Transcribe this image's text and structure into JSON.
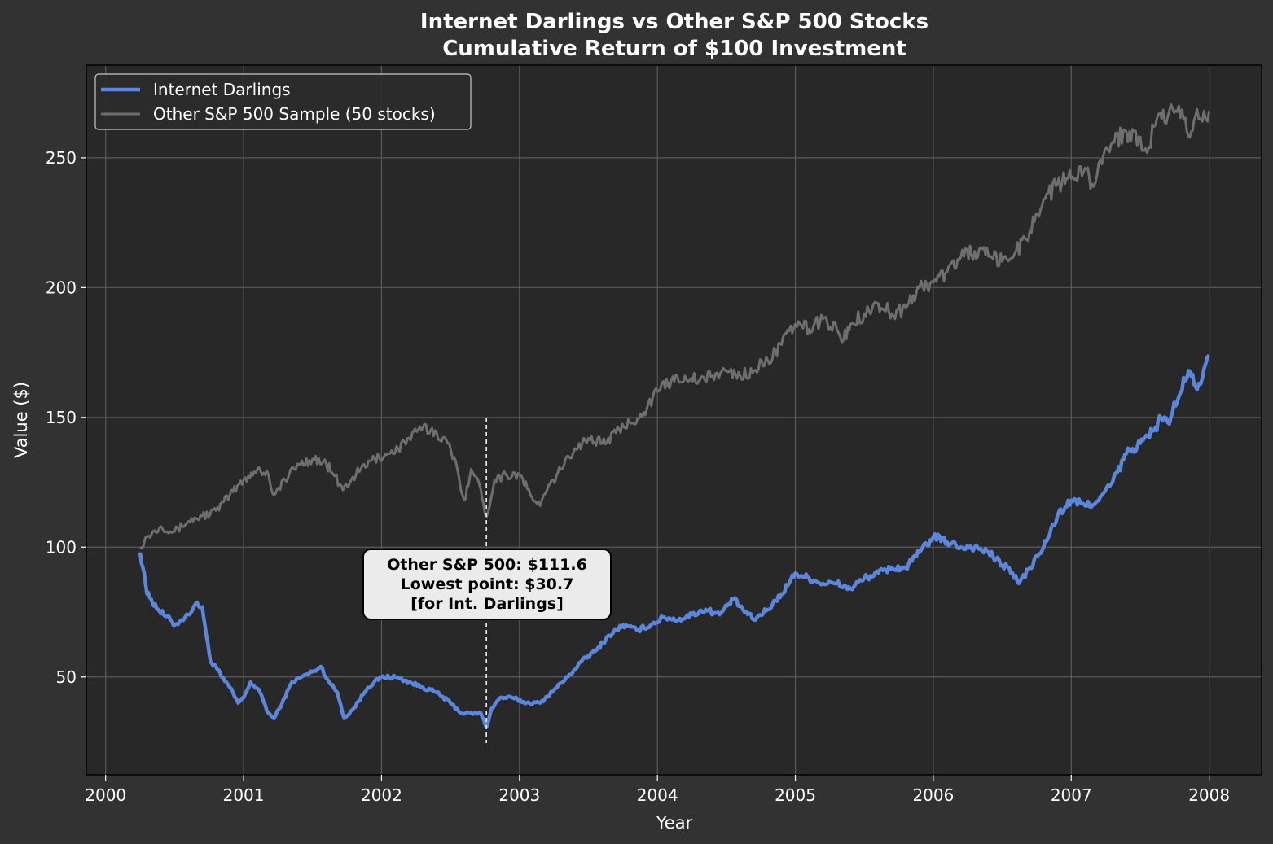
{
  "chart_data": {
    "type": "line",
    "title": "Internet Darlings vs Other S&P 500 Stocks",
    "subtitle": "Cumulative Return of $100 Investment",
    "xlabel": "Year",
    "ylabel": "Value ($)",
    "xlim": [
      1999.86,
      2008.38
    ],
    "ylim": [
      12.3,
      285.7
    ],
    "x_ticks": [
      2000,
      2001,
      2002,
      2003,
      2004,
      2005,
      2006,
      2007,
      2008
    ],
    "y_ticks": [
      50,
      100,
      150,
      200,
      250
    ],
    "grid": true,
    "legend_position": "top-left",
    "background": "#323232",
    "plot_background": "#282828",
    "series": [
      {
        "name": "Internet Darlings",
        "color": "#5b86db",
        "x": [
          2000.25,
          2000.28,
          2000.3,
          2000.33,
          2000.38,
          2000.42,
          2000.47,
          2000.5,
          2000.55,
          2000.6,
          2000.65,
          2000.7,
          2000.73,
          2000.76,
          2000.8,
          2000.84,
          2000.9,
          2000.96,
          2001.0,
          2001.05,
          2001.12,
          2001.18,
          2001.22,
          2001.28,
          2001.35,
          2001.42,
          2001.5,
          2001.56,
          2001.62,
          2001.68,
          2001.73,
          2001.8,
          2001.9,
          2002.0,
          2002.1,
          2002.2,
          2002.3,
          2002.4,
          2002.5,
          2002.58,
          2002.65,
          2002.72,
          2002.76,
          2002.8,
          2002.86,
          2002.95,
          2003.05,
          2003.15,
          2003.25,
          2003.35,
          2003.45,
          2003.55,
          2003.65,
          2003.75,
          2003.85,
          2003.95,
          2004.05,
          2004.15,
          2004.25,
          2004.35,
          2004.45,
          2004.55,
          2004.62,
          2004.7,
          2004.8,
          2004.9,
          2005.0,
          2005.1,
          2005.2,
          2005.3,
          2005.4,
          2005.5,
          2005.6,
          2005.7,
          2005.8,
          2005.9,
          2006.0,
          2006.1,
          2006.2,
          2006.3,
          2006.4,
          2006.5,
          2006.55,
          2006.62,
          2006.7,
          2006.8,
          2006.9,
          2007.0,
          2007.1,
          2007.2,
          2007.3,
          2007.4,
          2007.5,
          2007.6,
          2007.65,
          2007.7,
          2007.78,
          2007.85,
          2007.9,
          2007.95,
          2008.0
        ],
        "values": [
          98,
          90,
          82,
          80,
          76,
          74,
          72,
          70,
          72,
          74,
          78,
          77,
          66,
          56,
          54,
          50,
          46,
          40,
          42,
          48,
          44,
          36,
          34,
          40,
          48,
          50,
          52,
          54,
          48,
          44,
          34,
          38,
          46,
          50,
          50,
          48,
          46,
          44,
          40,
          36,
          36,
          36,
          30.7,
          38,
          42,
          42,
          40,
          40,
          45,
          50,
          56,
          60,
          66,
          70,
          68,
          70,
          73,
          72,
          74,
          76,
          74,
          80,
          76,
          72,
          76,
          82,
          90,
          88,
          86,
          86,
          84,
          88,
          90,
          92,
          92,
          98,
          104,
          102,
          100,
          100,
          98,
          93,
          92,
          86,
          92,
          100,
          112,
          118,
          116,
          118,
          125,
          136,
          140,
          145,
          150,
          148,
          158,
          168,
          162,
          165,
          174
        ]
      },
      {
        "name": "Other S&P 500 Sample (50 stocks)",
        "color": "#6e6e6e",
        "x": [
          2000.25,
          2000.3,
          2000.4,
          2000.5,
          2000.6,
          2000.7,
          2000.8,
          2000.9,
          2001.0,
          2001.1,
          2001.18,
          2001.22,
          2001.3,
          2001.4,
          2001.5,
          2001.6,
          2001.65,
          2001.72,
          2001.78,
          2001.85,
          2001.95,
          2002.05,
          2002.12,
          2002.2,
          2002.3,
          2002.4,
          2002.48,
          2002.55,
          2002.6,
          2002.65,
          2002.72,
          2002.76,
          2002.82,
          2002.9,
          2003.0,
          2003.08,
          2003.15,
          2003.2,
          2003.3,
          2003.4,
          2003.5,
          2003.6,
          2003.7,
          2003.8,
          2003.9,
          2004.0,
          2004.1,
          2004.2,
          2004.3,
          2004.4,
          2004.5,
          2004.6,
          2004.7,
          2004.8,
          2004.9,
          2005.0,
          2005.1,
          2005.2,
          2005.3,
          2005.35,
          2005.4,
          2005.5,
          2005.6,
          2005.7,
          2005.8,
          2005.9,
          2006.0,
          2006.1,
          2006.2,
          2006.3,
          2006.4,
          2006.5,
          2006.6,
          2006.7,
          2006.8,
          2006.9,
          2007.0,
          2007.1,
          2007.15,
          2007.2,
          2007.3,
          2007.4,
          2007.5,
          2007.55,
          2007.6,
          2007.7,
          2007.78,
          2007.85,
          2007.9,
          2007.95,
          2008.0
        ],
        "values": [
          100,
          104,
          108,
          106,
          110,
          112,
          114,
          120,
          126,
          130,
          128,
          120,
          126,
          132,
          134,
          132,
          128,
          122,
          126,
          130,
          134,
          136,
          138,
          142,
          146,
          144,
          140,
          130,
          118,
          130,
          122,
          111.6,
          126,
          128,
          128,
          120,
          116,
          122,
          130,
          138,
          142,
          140,
          144,
          148,
          152,
          160,
          164,
          166,
          164,
          166,
          168,
          166,
          168,
          172,
          178,
          186,
          184,
          188,
          184,
          180,
          186,
          190,
          194,
          190,
          192,
          200,
          202,
          206,
          212,
          214,
          212,
          210,
          214,
          222,
          234,
          240,
          242,
          246,
          240,
          248,
          256,
          260,
          258,
          252,
          262,
          266,
          270,
          258,
          266,
          264,
          268
        ]
      }
    ],
    "annotation": {
      "x": 2002.76,
      "lines": [
        "Other S&P 500: $111.6",
        "Lowest point: $30.7",
        "[for Int. Darlings]"
      ]
    }
  }
}
